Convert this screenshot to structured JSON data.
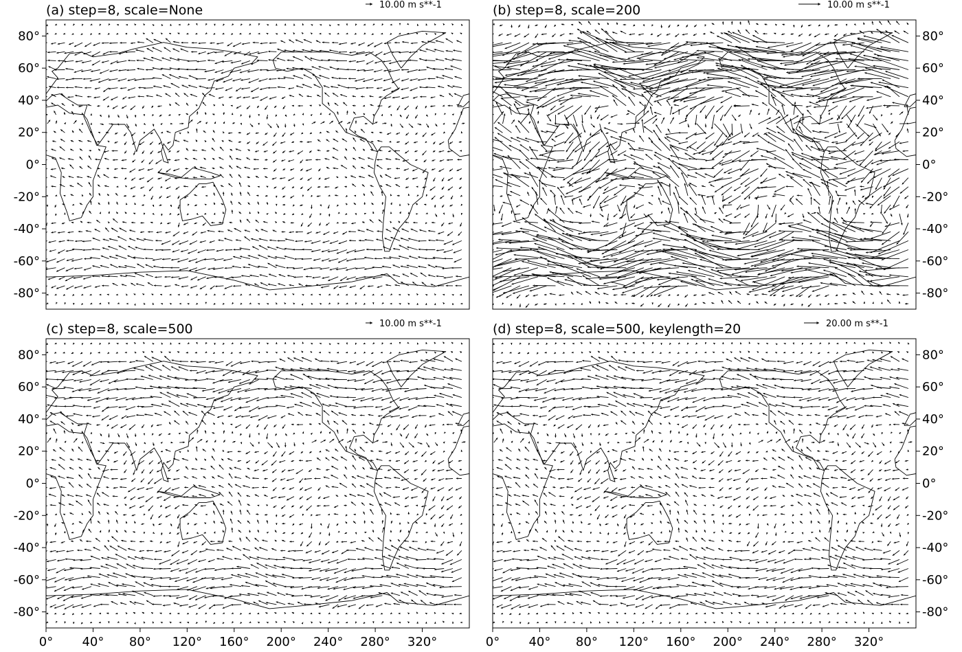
{
  "chart_data": [
    {
      "type": "quiver",
      "title": "(a) step=8, scale=None",
      "scale": null,
      "step": 8,
      "key": {
        "value": 10,
        "label": "10.00 m s**-1"
      },
      "lat_ticks": [
        "80°",
        "60°",
        "40°",
        "20°",
        "0°",
        "-20°",
        "-40°",
        "-60°",
        "-80°"
      ],
      "lon_ticks": [],
      "lat_axis_side": "left",
      "xlim": [
        0,
        360
      ],
      "ylim": [
        -90,
        90
      ]
    },
    {
      "type": "quiver",
      "title": "(b) step=8, scale=200",
      "scale": 200,
      "step": 8,
      "key": {
        "value": 10,
        "label": "10.00 m s**-1"
      },
      "lat_ticks": [
        "80°",
        "60°",
        "40°",
        "20°",
        "0°",
        "-20°",
        "-40°",
        "-60°",
        "-80°"
      ],
      "lon_ticks": [],
      "lat_axis_side": "right",
      "xlim": [
        0,
        360
      ],
      "ylim": [
        -90,
        90
      ]
    },
    {
      "type": "quiver",
      "title": "(c) step=8, scale=500",
      "scale": 500,
      "step": 8,
      "key": {
        "value": 10,
        "label": "10.00 m s**-1"
      },
      "lat_ticks": [
        "80°",
        "60°",
        "40°",
        "20°",
        "0°",
        "-20°",
        "-40°",
        "-60°",
        "-80°"
      ],
      "lon_ticks": [
        "0°",
        "40°",
        "80°",
        "120°",
        "160°",
        "200°",
        "240°",
        "280°",
        "320°"
      ],
      "lat_axis_side": "left",
      "xlim": [
        0,
        360
      ],
      "ylim": [
        -90,
        90
      ]
    },
    {
      "type": "quiver",
      "title": "(d) step=8, scale=500, keylength=20",
      "scale": 500,
      "step": 8,
      "key": {
        "value": 20,
        "label": "20.00 m s**-1"
      },
      "lat_ticks": [
        "80°",
        "60°",
        "40°",
        "20°",
        "0°",
        "-20°",
        "-40°",
        "-60°",
        "-80°"
      ],
      "lon_ticks": [
        "0°",
        "40°",
        "80°",
        "120°",
        "160°",
        "200°",
        "240°",
        "280°",
        "320°"
      ],
      "lat_axis_side": "right",
      "xlim": [
        0,
        360
      ],
      "ylim": [
        -90,
        90
      ]
    }
  ],
  "colors": {
    "ink": "#000000",
    "background": "#ffffff"
  }
}
